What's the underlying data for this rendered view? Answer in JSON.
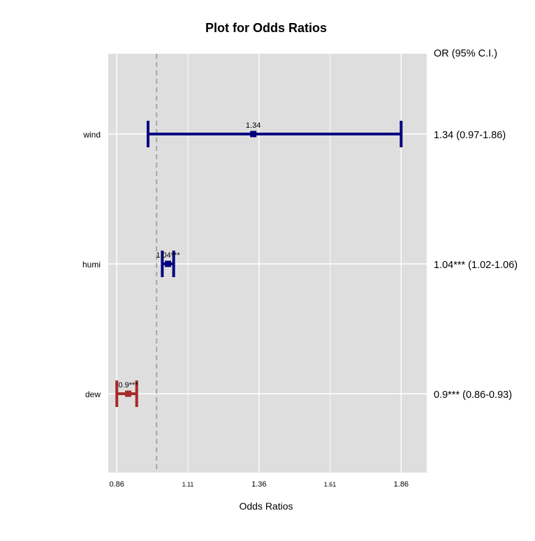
{
  "chart_data": {
    "type": "forest",
    "title": "Plot for Odds Ratios",
    "xlabel": "Odds Ratios",
    "ci_header": "OR (95% C.I.)",
    "xlim": [
      0.83,
      1.95
    ],
    "reference_line": 1.0,
    "x_ticks": [
      {
        "value": 0.86,
        "label": "0.86",
        "size": "big"
      },
      {
        "value": 1.11,
        "label": "1.11",
        "size": "small"
      },
      {
        "value": 1.36,
        "label": "1.36",
        "size": "big"
      },
      {
        "value": 1.61,
        "label": "1.61",
        "size": "small"
      },
      {
        "value": 1.86,
        "label": "1.86",
        "size": "big"
      }
    ],
    "rows": [
      {
        "name": "wind",
        "or": 1.34,
        "lower": 0.97,
        "upper": 1.86,
        "point_label": "1.34",
        "ci_text": "1.34 (0.97-1.86)",
        "color": "#00007f"
      },
      {
        "name": "humi",
        "or": 1.04,
        "lower": 1.02,
        "upper": 1.06,
        "point_label": "1.04***",
        "ci_text": "1.04*** (1.02-1.06)",
        "color": "#00007f"
      },
      {
        "name": "dew",
        "or": 0.9,
        "lower": 0.86,
        "upper": 0.93,
        "point_label": "0.9***",
        "ci_text": "0.9*** (0.86-0.93)",
        "color": "#a52a2a"
      }
    ],
    "panel_background": "#dedede",
    "grid": true
  }
}
